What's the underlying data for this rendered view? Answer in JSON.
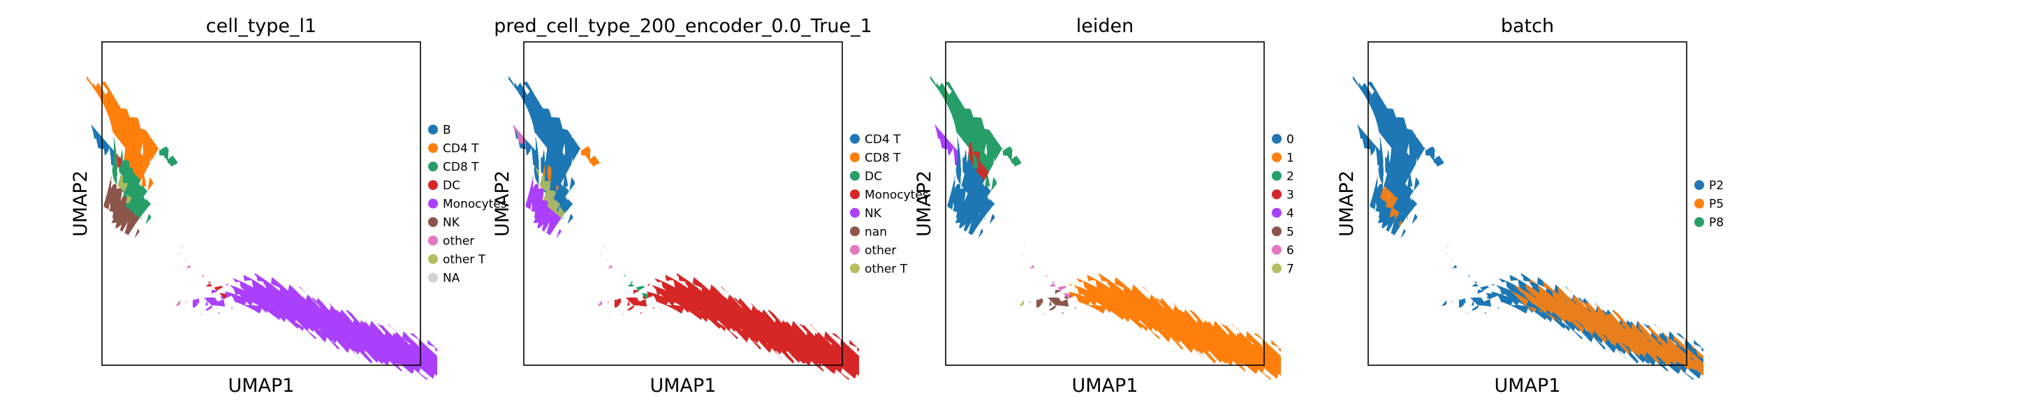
{
  "figure": {
    "colors": {
      "c0": "#1f77b4",
      "c1": "#ff7f0e",
      "c2": "#279e68",
      "c3": "#d62728",
      "c4": "#aa40fc",
      "c5": "#8c564b",
      "c6": "#e377c2",
      "c7": "#b5bd61",
      "na": "#d3d3d3"
    }
  },
  "chart_data": [
    {
      "type": "scatter",
      "title": "cell_type_l1",
      "xlabel": "UMAP1",
      "ylabel": "UMAP2",
      "legend_position": "right",
      "legend": [
        {
          "name": "B",
          "color": "#1f77b4"
        },
        {
          "name": "CD4 T",
          "color": "#ff7f0e"
        },
        {
          "name": "CD8 T",
          "color": "#279e68"
        },
        {
          "name": "DC",
          "color": "#d62728"
        },
        {
          "name": "Monocytes",
          "color": "#aa40fc"
        },
        {
          "name": "NK",
          "color": "#8c564b"
        },
        {
          "name": "other",
          "color": "#e377c2"
        },
        {
          "name": "other T",
          "color": "#b5bd61"
        },
        {
          "name": "NA",
          "color": "#d3d3d3"
        }
      ]
    },
    {
      "type": "scatter",
      "title": "pred_cell_type_200_encoder_0.0_True_1",
      "xlabel": "UMAP1",
      "ylabel": "UMAP2",
      "legend_position": "right",
      "legend": [
        {
          "name": "CD4 T",
          "color": "#1f77b4"
        },
        {
          "name": "CD8 T",
          "color": "#ff7f0e"
        },
        {
          "name": "DC",
          "color": "#279e68"
        },
        {
          "name": "Monocytes",
          "color": "#d62728"
        },
        {
          "name": "NK",
          "color": "#aa40fc"
        },
        {
          "name": "nan",
          "color": "#8c564b"
        },
        {
          "name": "other",
          "color": "#e377c2"
        },
        {
          "name": "other T",
          "color": "#b5bd61"
        }
      ]
    },
    {
      "type": "scatter",
      "title": "leiden",
      "xlabel": "UMAP1",
      "ylabel": "UMAP2",
      "legend_position": "right",
      "legend": [
        {
          "name": "0",
          "color": "#1f77b4"
        },
        {
          "name": "1",
          "color": "#ff7f0e"
        },
        {
          "name": "2",
          "color": "#279e68"
        },
        {
          "name": "3",
          "color": "#d62728"
        },
        {
          "name": "4",
          "color": "#aa40fc"
        },
        {
          "name": "5",
          "color": "#8c564b"
        },
        {
          "name": "6",
          "color": "#e377c2"
        },
        {
          "name": "7",
          "color": "#b5bd61"
        }
      ]
    },
    {
      "type": "scatter",
      "title": "batch",
      "xlabel": "UMAP1",
      "ylabel": "UMAP2",
      "legend_position": "right",
      "legend": [
        {
          "name": "P2",
          "color": "#1f77b4"
        },
        {
          "name": "P5",
          "color": "#ff7f0e"
        },
        {
          "name": "P8",
          "color": "#279e68"
        }
      ]
    }
  ]
}
